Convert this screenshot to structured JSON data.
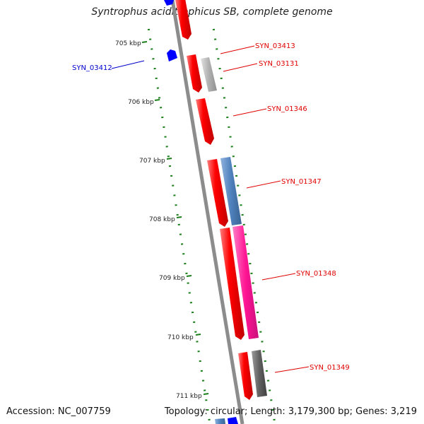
{
  "title": "Syntrophus aciditrophicus SB, complete genome",
  "accession": "Accession: NC_007759",
  "topology": "Topology: circular; Length: 3,179,300 bp; Genes: 3,219",
  "ticks": [
    "705 kbp",
    "706 kbp",
    "707 kbp",
    "708 kbp",
    "709 kbp",
    "710 kbp",
    "711 kbp"
  ],
  "genes": [
    {
      "label": "SYN_03413",
      "color": "#e00000"
    },
    {
      "label": "SYN_03131",
      "color": "#e00000"
    },
    {
      "label": "SYN_01346",
      "color": "#e00000"
    },
    {
      "label": "SYN_01347",
      "color": "#e00000"
    },
    {
      "label": "SYN_01348",
      "color": "#e00000"
    },
    {
      "label": "SYN_01349",
      "color": "#e00000"
    },
    {
      "label": "SYN_03412",
      "color": "#0000cc"
    }
  ],
  "colors": {
    "backbone": "#8c8c8c",
    "tick": "#1a7f1a",
    "cds_red": "#ff0000",
    "cds_blue": "#0000ff",
    "cds_grey": "#b0b0b0",
    "cds_steel": "#4f81bd",
    "cds_pink": "#ff1493",
    "cds_dark": "#606060"
  }
}
